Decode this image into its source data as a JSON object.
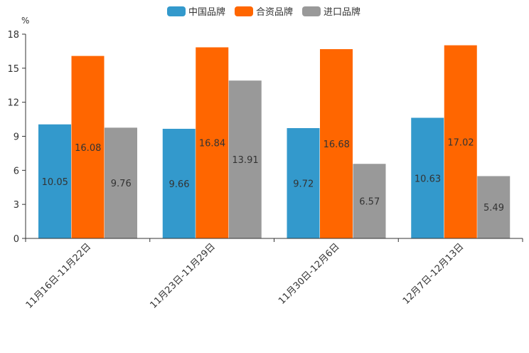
{
  "chart_data": {
    "type": "bar",
    "title": "",
    "ylabel": "%",
    "xlabel": "",
    "ylim": [
      0,
      18
    ],
    "yticks": [
      0,
      3,
      6,
      9,
      12,
      15,
      18
    ],
    "categories": [
      "11月16日-11月22日",
      "11月23日-11月29日",
      "11月30日-12月6日",
      "12月7日-12月13日"
    ],
    "series": [
      {
        "name": "中国品牌",
        "color": "#3399cc",
        "values": [
          10.05,
          9.66,
          9.72,
          10.63
        ],
        "labels": [
          "10.05",
          "9.66",
          "9.72",
          "10.63"
        ]
      },
      {
        "name": "合资品牌",
        "color": "#ff6600",
        "values": [
          16.08,
          16.84,
          16.68,
          17.02
        ],
        "labels": [
          "16.08",
          "16.84",
          "16.68",
          "17.02"
        ]
      },
      {
        "name": "进口品牌",
        "color": "#999999",
        "values": [
          9.76,
          13.91,
          6.57,
          5.49
        ],
        "labels": [
          "9.76",
          "13.91",
          "6.57",
          "5.49"
        ]
      }
    ],
    "legend_position": "top-center",
    "grid": false
  }
}
